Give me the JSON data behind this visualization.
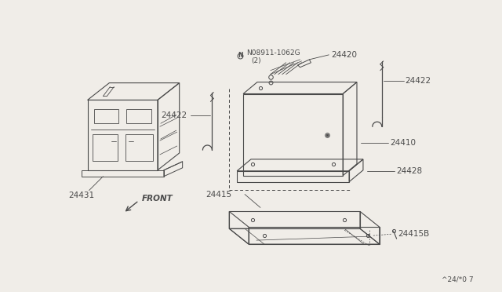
{
  "bg_color": "#f0ede8",
  "line_color": "#4a4a4a",
  "watermark": "^24/*0 7",
  "parts": {
    "battery_cover_label": "24431",
    "bolt_label": "N08911-1062G",
    "bolt_label2": "(2)",
    "cable_pos_label": "24420",
    "hold_rod_label": "24422",
    "battery_label": "24410",
    "battery_pad_label": "24428",
    "bracket_label": "24415",
    "bracket_bolt_label": "24415B",
    "front_label": "FRONT"
  }
}
